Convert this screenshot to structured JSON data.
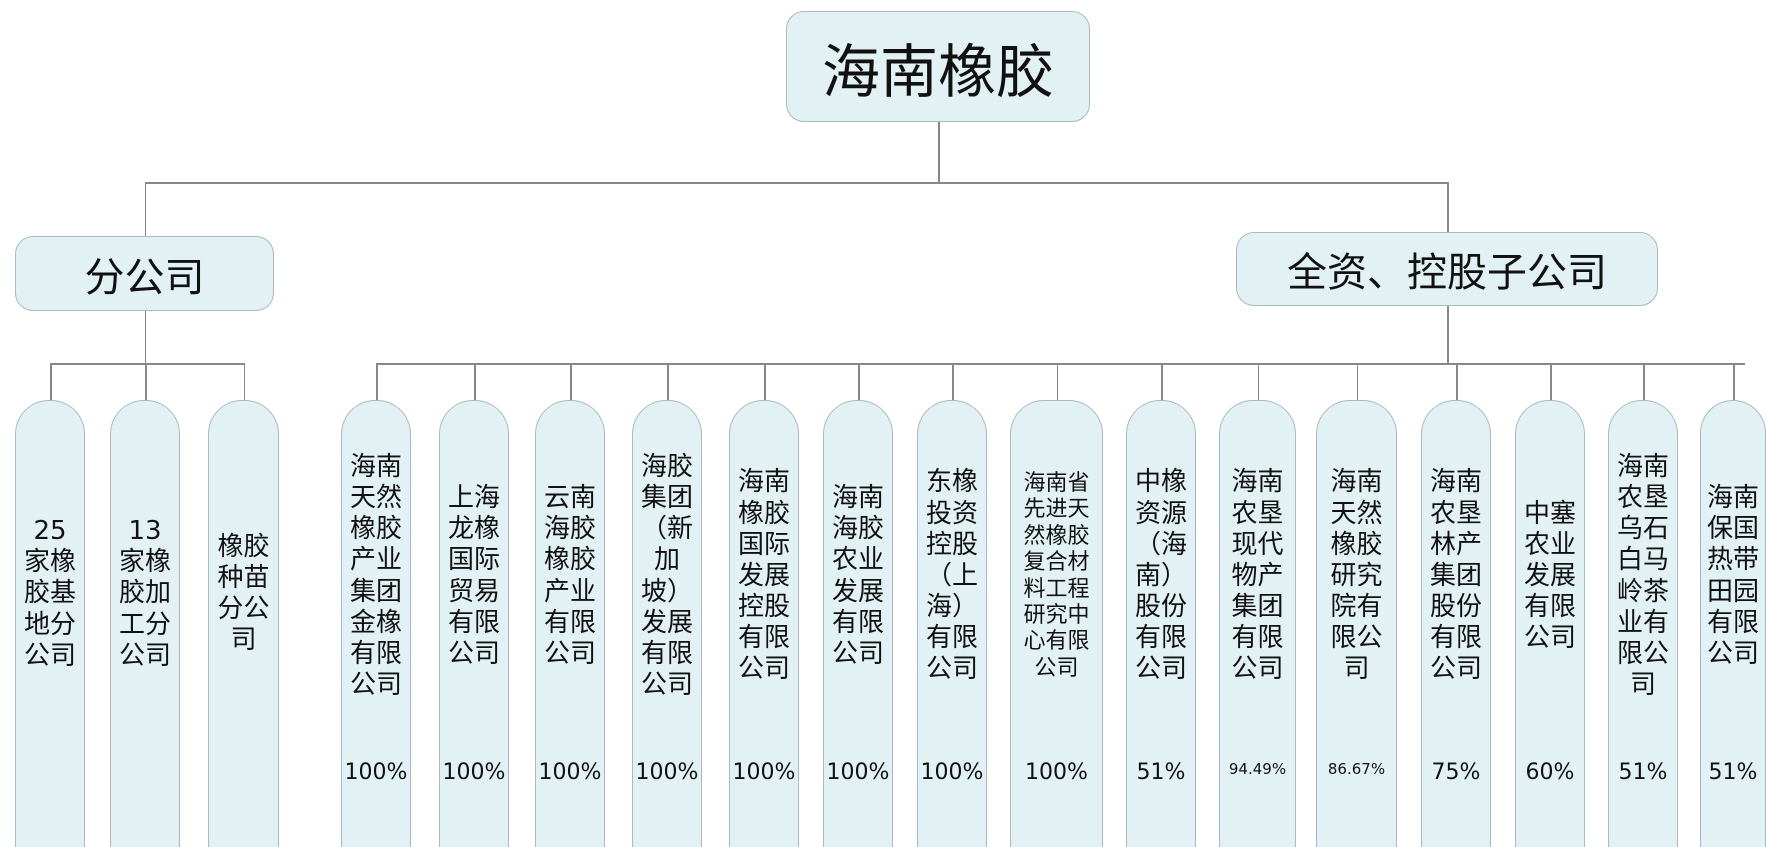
{
  "root": "海南橡胶",
  "branches": [
    {
      "label": "分公司",
      "children": [
        {
          "label": "25家橡胶基地分公司"
        },
        {
          "label": "13家橡胶加工分公司"
        },
        {
          "label": "橡胶种苗分公司"
        }
      ]
    },
    {
      "label": "全资、控股子公司",
      "children": [
        {
          "label": "海南天然橡胶产业集团金橡有限公司",
          "share": "100%"
        },
        {
          "label": "上海龙橡国际贸易有限公司",
          "share": "100%"
        },
        {
          "label": "云南海胶橡胶产业有限公司",
          "share": "100%"
        },
        {
          "label": "海胶集团（新加坡）发展有限公司",
          "share": "100%"
        },
        {
          "label": "海南橡胶国际发展控股有限公司",
          "share": "100%"
        },
        {
          "label": "海南海胶农业发展有限公司",
          "share": "100%"
        },
        {
          "label": "东橡投资控股（上海）有限公司",
          "share": "100%"
        },
        {
          "label": "海南省先进天然橡胶复合材料工程研究中心有限公司",
          "share": "100%"
        },
        {
          "label": "中橡资源（海南）股份有限公司",
          "share": "51%"
        },
        {
          "label": "海南农垦现代物产集团有限公司",
          "share": "94.49%"
        },
        {
          "label": "海南天然橡胶研究院有限公司",
          "share": "86.67%"
        },
        {
          "label": "海南农垦林产集团股份有限公司",
          "share": "75%"
        },
        {
          "label": "中塞农业发展有限公司",
          "share": "60%"
        },
        {
          "label": "海南农垦乌石白马岭茶业有限公司",
          "share": "51%"
        },
        {
          "label": "海南保国热带田园有限公司",
          "share": "51%"
        }
      ]
    }
  ]
}
